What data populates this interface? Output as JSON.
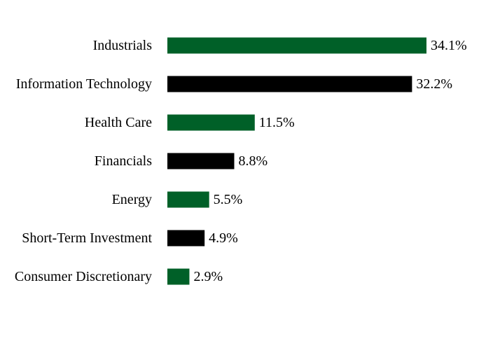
{
  "chart_data": {
    "type": "bar",
    "orientation": "horizontal",
    "title": "",
    "xlabel": "",
    "ylabel": "",
    "categories": [
      "Industrials",
      "Information Technology",
      "Health Care",
      "Financials",
      "Energy",
      "Short-Term Investment",
      "Consumer Discretionary"
    ],
    "values": [
      34.1,
      32.2,
      11.5,
      8.8,
      5.5,
      4.9,
      2.9
    ],
    "value_labels": [
      "34.1%",
      "32.2%",
      "11.5%",
      "8.8%",
      "5.5%",
      "4.9%",
      "2.9%"
    ],
    "bar_colors": [
      "#006028",
      "#000000",
      "#006028",
      "#000000",
      "#006028",
      "#000000",
      "#006028"
    ],
    "xlim": [
      0,
      34.1
    ],
    "grid": false,
    "legend": "none"
  }
}
